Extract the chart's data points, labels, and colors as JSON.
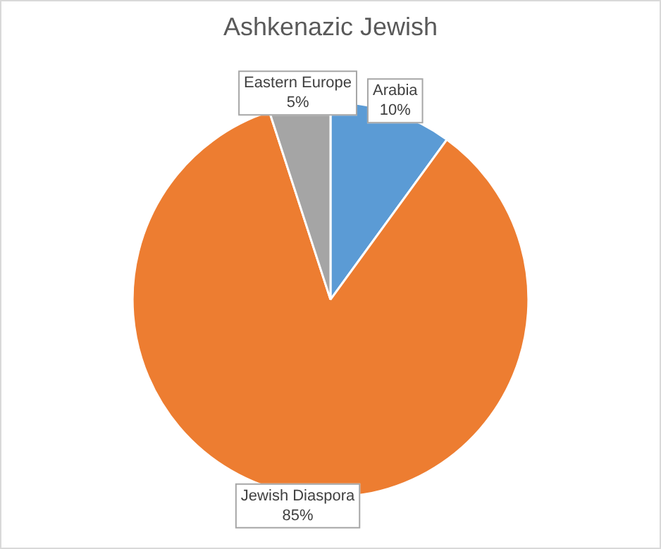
{
  "chart_data": {
    "type": "pie",
    "title": "Ashkenazic Jewish",
    "categories": [
      "Arabia",
      "Jewish Diaspora",
      "Eastern Europe"
    ],
    "values": [
      10,
      85,
      5
    ],
    "colors": [
      "#5b9bd5",
      "#ed7d31",
      "#a5a5a5"
    ],
    "value_labels": [
      "10%",
      "85%",
      "5%"
    ],
    "legend": false
  }
}
